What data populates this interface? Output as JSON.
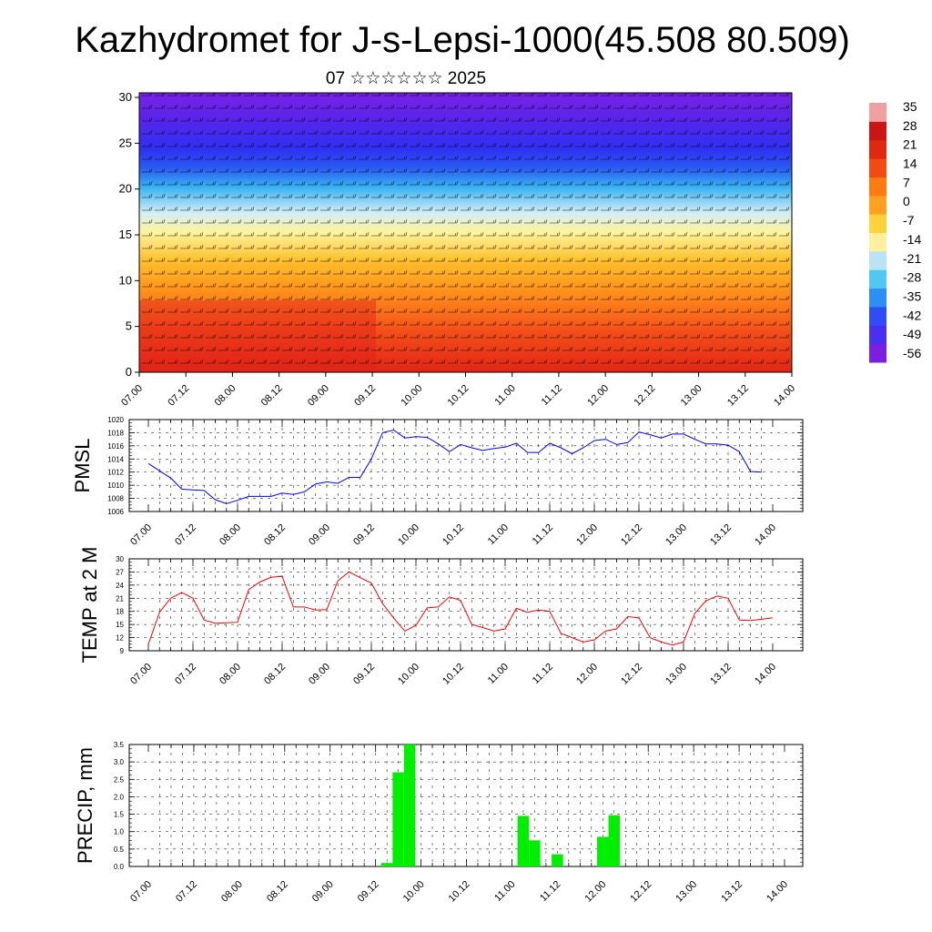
{
  "title": "Kazhydromet for J-s-Lepsi-1000(45.508 80.509)",
  "subtitle": "07 ☆☆☆☆☆☆ 2025",
  "time_labels": [
    "07.00",
    "07.12",
    "08.00",
    "08.12",
    "09.00",
    "09.12",
    "10.00",
    "10.12",
    "11.00",
    "11.12",
    "12.00",
    "12.12",
    "13.00",
    "13.12",
    "14.00"
  ],
  "chart_data": [
    {
      "type": "heatmap",
      "description_of_fill": "temperature cross-section with wind barbs",
      "y_ticks": [
        "0",
        "5",
        "10",
        "15",
        "20",
        "25",
        "30"
      ],
      "ylim": [
        0,
        30.5
      ],
      "colorbar_labels": [
        "35",
        "28",
        "21",
        "14",
        "7",
        "0",
        "-7",
        "-14",
        "-21",
        "-28",
        "-35",
        "-42",
        "-49",
        "-56"
      ],
      "colorbar_colors": [
        "#7a1fe0",
        "#4b2ff0",
        "#2f4cf5",
        "#2c8ff5",
        "#4fc8f2",
        "#b8e4f5",
        "#fff0a0",
        "#ffd23c",
        "#ffa020",
        "#ff7a10",
        "#f24a10",
        "#e02810",
        "#cc1414",
        "#f0a0a0"
      ]
    },
    {
      "type": "line",
      "ylabel": "PMSL",
      "ylim": [
        1006,
        1020
      ],
      "y_ticks": [
        "1006",
        "1008",
        "1010",
        "1012",
        "1014",
        "1016",
        "1018",
        "1020"
      ],
      "color": "#0000ff",
      "x_step_hours": 3,
      "values": [
        1013.3,
        1012.2,
        1011.1,
        1009.4,
        1009.3,
        1009.2,
        1007.8,
        1007.2,
        1007.7,
        1008.3,
        1008.3,
        1008.3,
        1008.8,
        1008.6,
        1009.0,
        1010.2,
        1010.5,
        1010.3,
        1011.2,
        1011.2,
        1014.0,
        1018.0,
        1018.4,
        1017.2,
        1017.4,
        1017.3,
        1016.3,
        1015.1,
        1016.2,
        1015.7,
        1015.3,
        1015.6,
        1015.8,
        1016.4,
        1015.0,
        1015.0,
        1016.4,
        1015.7,
        1014.8,
        1015.7,
        1016.8,
        1017.0,
        1016.2,
        1016.5,
        1018.1,
        1017.7,
        1017.2,
        1017.8,
        1017.8,
        1017.0,
        1016.3,
        1016.3,
        1016.1,
        1015.1,
        1012.1,
        1012.0
      ]
    },
    {
      "type": "line",
      "ylabel": "TEMP at 2 M",
      "ylim": [
        9,
        30
      ],
      "y_ticks": [
        "9",
        "12",
        "15",
        "18",
        "21",
        "24",
        "27",
        "30"
      ],
      "color": "#ff0000",
      "x_step_hours": 3,
      "values": [
        10.5,
        17.8,
        21.0,
        22.3,
        21.0,
        16.0,
        15.3,
        15.4,
        15.5,
        23.0,
        24.7,
        25.8,
        26.0,
        19.0,
        19.0,
        18.3,
        18.4,
        25.0,
        27.0,
        25.7,
        24.5,
        19.8,
        16.5,
        13.5,
        14.8,
        18.8,
        19.0,
        21.3,
        20.5,
        15.0,
        14.3,
        13.5,
        14.0,
        18.7,
        17.8,
        18.3,
        18.0,
        13.0,
        12.0,
        11.0,
        11.5,
        13.5,
        14.0,
        16.8,
        16.5,
        12.0,
        11.0,
        10.3,
        11.0,
        17.5,
        20.4,
        21.5,
        21.0,
        16.0,
        15.9,
        16.2,
        16.5
      ]
    },
    {
      "type": "bar",
      "ylabel": "PRECIP, mm",
      "ylim": [
        0,
        3.5
      ],
      "y_ticks": [
        "0.0",
        "0.5",
        "1.0",
        "1.5",
        "2.0",
        "2.5",
        "3.0",
        "3.5"
      ],
      "color": "#00ee00",
      "x_step_hours": 3,
      "values": [
        0,
        0,
        0,
        0,
        0,
        0,
        0,
        0,
        0,
        0,
        0,
        0,
        0,
        0,
        0,
        0,
        0,
        0,
        0,
        0,
        0,
        0.1,
        2.7,
        3.5,
        0,
        0,
        0,
        0,
        0,
        0,
        0,
        0,
        0,
        1.45,
        0.75,
        0,
        0.35,
        0,
        0,
        0,
        0.85,
        1.47,
        0,
        0,
        0,
        0,
        0,
        0,
        0,
        0,
        0,
        0,
        0,
        0,
        0,
        0
      ]
    }
  ]
}
